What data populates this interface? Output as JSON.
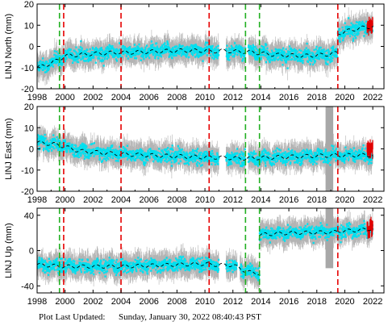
{
  "footer": {
    "label": "Plot Last Updated:",
    "value": "Sunday, January 30, 2022 08:40:43 PST"
  },
  "chart_data": [
    {
      "type": "scatter",
      "title": "",
      "xlabel": "",
      "ylabel": "LINJ North (mm)",
      "xlim": [
        1998,
        2022.8
      ],
      "ylim": [
        -20,
        20
      ],
      "xticks": [
        1998,
        2000,
        2002,
        2004,
        2006,
        2008,
        2010,
        2012,
        2014,
        2016,
        2018,
        2020,
        2022
      ],
      "yticks": [
        -20,
        -10,
        0,
        10,
        20
      ],
      "grid": false,
      "segments": [
        {
          "start": 1998.0,
          "end": 2004.0,
          "trend": [
            [
              1998.0,
              -10.0
            ],
            [
              1999.0,
              -8.0
            ],
            [
              2000.0,
              -4.5
            ],
            [
              2002.0,
              -3.5
            ],
            [
              2004.0,
              -2.8
            ]
          ]
        },
        {
          "start": 2004.0,
          "end": 2010.3,
          "trend": [
            [
              2004.0,
              -3.0
            ],
            [
              2006.0,
              -2.5
            ],
            [
              2008.0,
              -2.0
            ],
            [
              2010.3,
              -2.0
            ]
          ]
        },
        {
          "start": 2010.3,
          "end": 2013.0,
          "trend": [
            [
              2010.3,
              -2.5
            ],
            [
              2011.2,
              -2.0
            ],
            [
              2012.5,
              -2.5
            ],
            [
              2013.0,
              -2.5
            ]
          ]
        },
        {
          "start": 2013.0,
          "end": 2019.5,
          "trend": [
            [
              2013.0,
              -2.5
            ],
            [
              2015.0,
              -4.0
            ],
            [
              2017.0,
              -4.5
            ],
            [
              2018.5,
              -4.0
            ],
            [
              2019.5,
              -3.0
            ]
          ]
        },
        {
          "start": 2019.5,
          "end": 2022.0,
          "trend": [
            [
              2019.5,
              6.0
            ],
            [
              2020.0,
              7.0
            ],
            [
              2021.0,
              8.5
            ],
            [
              2022.0,
              9.5
            ]
          ]
        }
      ],
      "gaps": [
        [
          2011.0,
          2011.5
        ],
        [
          2012.9,
          2013.1
        ]
      ],
      "scatter_sd": 2.5,
      "error_sd": 4.5,
      "red_points": {
        "start": 2021.6,
        "end": 2022.0,
        "center": 9.5
      },
      "red_lines": [
        1999.9,
        2004.0,
        2010.3,
        2019.5
      ],
      "green_lines": [
        1999.6,
        2012.9,
        2013.9
      ]
    },
    {
      "type": "scatter",
      "title": "",
      "xlabel": "",
      "ylabel": "LINJ East (mm)",
      "xlim": [
        1998,
        2022.8
      ],
      "ylim": [
        -20,
        20
      ],
      "xticks": [
        1998,
        2000,
        2002,
        2004,
        2006,
        2008,
        2010,
        2012,
        2014,
        2016,
        2018,
        2020,
        2022
      ],
      "yticks": [
        -20,
        -10,
        0,
        10,
        20
      ],
      "grid": false,
      "segments": [
        {
          "start": 1998.0,
          "end": 2004.0,
          "trend": [
            [
              1998.0,
              3.0
            ],
            [
              1999.5,
              2.0
            ],
            [
              2001.0,
              -1.0
            ],
            [
              2004.0,
              -2.5
            ]
          ]
        },
        {
          "start": 2004.0,
          "end": 2010.3,
          "trend": [
            [
              2004.0,
              -2.5
            ],
            [
              2006.0,
              -3.0
            ],
            [
              2008.0,
              -3.5
            ],
            [
              2010.3,
              -4.0
            ]
          ]
        },
        {
          "start": 2010.3,
          "end": 2013.0,
          "trend": [
            [
              2010.3,
              -4.0
            ],
            [
              2011.0,
              -4.0
            ],
            [
              2012.5,
              -4.5
            ],
            [
              2013.0,
              -4.5
            ]
          ]
        },
        {
          "start": 2013.0,
          "end": 2019.5,
          "trend": [
            [
              2013.0,
              -4.5
            ],
            [
              2015.0,
              -4.0
            ],
            [
              2017.0,
              -3.5
            ],
            [
              2019.5,
              -3.0
            ]
          ]
        },
        {
          "start": 2019.5,
          "end": 2022.0,
          "trend": [
            [
              2019.5,
              -3.0
            ],
            [
              2021.0,
              -3.0
            ],
            [
              2022.0,
              -3.0
            ]
          ]
        }
      ],
      "gaps": [
        [
          2011.0,
          2011.5
        ],
        [
          2012.9,
          2013.1
        ]
      ],
      "scatter_sd": 2.5,
      "error_sd": 4.5,
      "red_points": {
        "start": 2021.6,
        "end": 2022.0,
        "center": 0.0
      },
      "outlier_band": {
        "x": 2018.9,
        "from": -20,
        "to": 20
      },
      "red_lines": [
        1999.9,
        2004.0,
        2010.3,
        2019.5
      ],
      "green_lines": [
        1999.6,
        2012.9,
        2013.9
      ]
    },
    {
      "type": "scatter",
      "title": "",
      "xlabel": "",
      "ylabel": "LINJ Up (mm)",
      "xlim": [
        1998,
        2022.8
      ],
      "ylim": [
        -48,
        48
      ],
      "xticks": [
        1998,
        2000,
        2002,
        2004,
        2006,
        2008,
        2010,
        2012,
        2014,
        2016,
        2018,
        2020,
        2022
      ],
      "yticks": [
        -40,
        0,
        40
      ],
      "grid": false,
      "segments": [
        {
          "start": 1998.0,
          "end": 2004.0,
          "trend": [
            [
              1998.0,
              -16.0
            ],
            [
              2000.0,
              -18.0
            ],
            [
              2004.0,
              -18.0
            ]
          ]
        },
        {
          "start": 2004.0,
          "end": 2010.3,
          "trend": [
            [
              2004.0,
              -18.0
            ],
            [
              2006.0,
              -17.0
            ],
            [
              2008.0,
              -16.0
            ],
            [
              2010.3,
              -15.0
            ]
          ]
        },
        {
          "start": 2010.3,
          "end": 2013.9,
          "trend": [
            [
              2010.3,
              -16.0
            ],
            [
              2012.0,
              -16.5
            ],
            [
              2013.0,
              -24.0
            ],
            [
              2013.9,
              -26.0
            ]
          ]
        },
        {
          "start": 2013.9,
          "end": 2019.5,
          "trend": [
            [
              2013.9,
              18.0
            ],
            [
              2016.0,
              20.0
            ],
            [
              2018.0,
              20.5
            ],
            [
              2019.5,
              21.0
            ]
          ]
        },
        {
          "start": 2019.5,
          "end": 2022.0,
          "trend": [
            [
              2019.5,
              22.0
            ],
            [
              2021.0,
              23.0
            ],
            [
              2022.0,
              25.0
            ]
          ]
        }
      ],
      "gaps": [
        [
          2011.0,
          2011.5
        ],
        [
          2012.3,
          2012.5
        ]
      ],
      "scatter_sd": 5.5,
      "error_sd": 11.0,
      "red_points": {
        "start": 2021.6,
        "end": 2022.0,
        "center": 25.0
      },
      "outlier_band": {
        "x": 2018.9,
        "from": -20,
        "to": 48
      },
      "red_lines": [
        1999.9,
        2004.0,
        2010.3,
        2019.5
      ],
      "green_lines": [
        1999.6,
        2012.9,
        2013.9
      ]
    }
  ],
  "colors": {
    "data_points": "#00e0f0",
    "error_bars": "#b4b4b4",
    "red_points": "#e00000",
    "red_dashed_lines": "#e60000",
    "green_dashed_lines": "#22b022",
    "trend_line": "#000000",
    "background": "#ffffff"
  }
}
